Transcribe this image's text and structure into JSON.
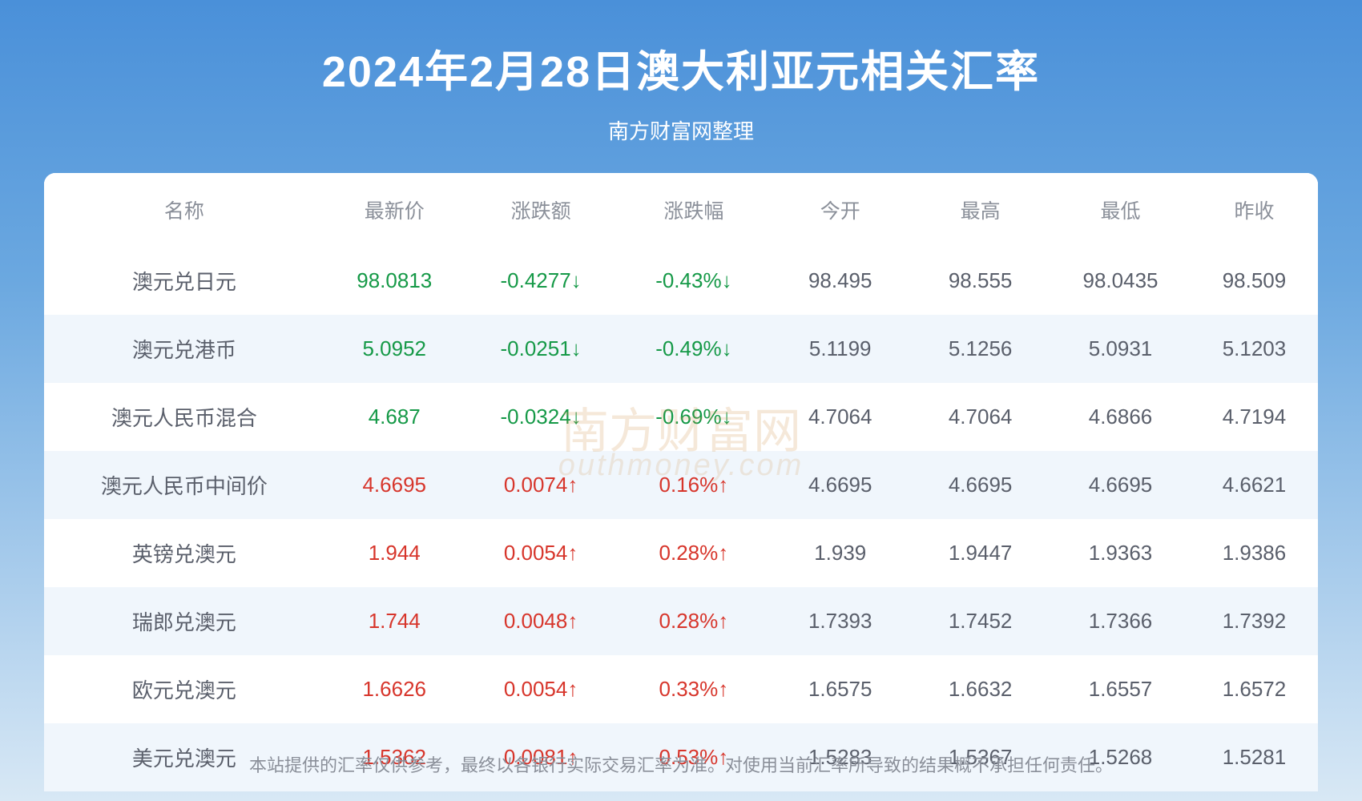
{
  "header": {
    "title": "2024年2月28日澳大利亚元相关汇率",
    "subtitle": "南方财富网整理"
  },
  "table": {
    "columns": [
      "名称",
      "最新价",
      "涨跌额",
      "涨跌幅",
      "今开",
      "最高",
      "最低",
      "昨收"
    ],
    "rows": [
      {
        "name": "澳元兑日元",
        "price": "98.0813",
        "change": "-0.4277↓",
        "changepct": "-0.43%↓",
        "open": "98.495",
        "high": "98.555",
        "low": "98.0435",
        "prev": "98.509",
        "dir": "down"
      },
      {
        "name": "澳元兑港币",
        "price": "5.0952",
        "change": "-0.0251↓",
        "changepct": "-0.49%↓",
        "open": "5.1199",
        "high": "5.1256",
        "low": "5.0931",
        "prev": "5.1203",
        "dir": "down"
      },
      {
        "name": "澳元人民币混合",
        "price": "4.687",
        "change": "-0.0324↓",
        "changepct": "-0.69%↓",
        "open": "4.7064",
        "high": "4.7064",
        "low": "4.6866",
        "prev": "4.7194",
        "dir": "down"
      },
      {
        "name": "澳元人民币中间价",
        "price": "4.6695",
        "change": "0.0074↑",
        "changepct": "0.16%↑",
        "open": "4.6695",
        "high": "4.6695",
        "low": "4.6695",
        "prev": "4.6621",
        "dir": "up"
      },
      {
        "name": "英镑兑澳元",
        "price": "1.944",
        "change": "0.0054↑",
        "changepct": "0.28%↑",
        "open": "1.939",
        "high": "1.9447",
        "low": "1.9363",
        "prev": "1.9386",
        "dir": "up"
      },
      {
        "name": "瑞郎兑澳元",
        "price": "1.744",
        "change": "0.0048↑",
        "changepct": "0.28%↑",
        "open": "1.7393",
        "high": "1.7452",
        "low": "1.7366",
        "prev": "1.7392",
        "dir": "up"
      },
      {
        "name": "欧元兑澳元",
        "price": "1.6626",
        "change": "0.0054↑",
        "changepct": "0.33%↑",
        "open": "1.6575",
        "high": "1.6632",
        "low": "1.6557",
        "prev": "1.6572",
        "dir": "up"
      },
      {
        "name": "美元兑澳元",
        "price": "1.5362",
        "change": "0.0081↑",
        "changepct": "0.53%↑",
        "open": "1.5283",
        "high": "1.5367",
        "low": "1.5268",
        "prev": "1.5281",
        "dir": "up"
      }
    ]
  },
  "watermark": {
    "main": "南方财富网",
    "sub": "outhmoney.com"
  },
  "disclaimer": "本站提供的汇率仅供参考，最终以各银行实际交易汇率为准。对使用当前汇率所导致的结果概不承担任何责任。",
  "styles": {
    "bg_gradient_top": "#4a90d9",
    "bg_gradient_mid": "#6ba8e0",
    "bg_gradient_bottom": "#d8e8f5",
    "title_color": "#ffffff",
    "title_fontsize": 54,
    "subtitle_fontsize": 26,
    "header_text_color": "#8a8f99",
    "cell_text_color": "#5a5f6b",
    "down_color": "#159947",
    "up_color": "#d7352b",
    "row_alt_bg": "#f0f6fc",
    "row_bg": "#ffffff",
    "table_radius": 14,
    "cell_fontsize": 26,
    "header_fontsize": 25,
    "disclaimer_color": "#8a8f99",
    "disclaimer_fontsize": 22,
    "watermark_color": "rgba(210,150,80,0.22)"
  }
}
